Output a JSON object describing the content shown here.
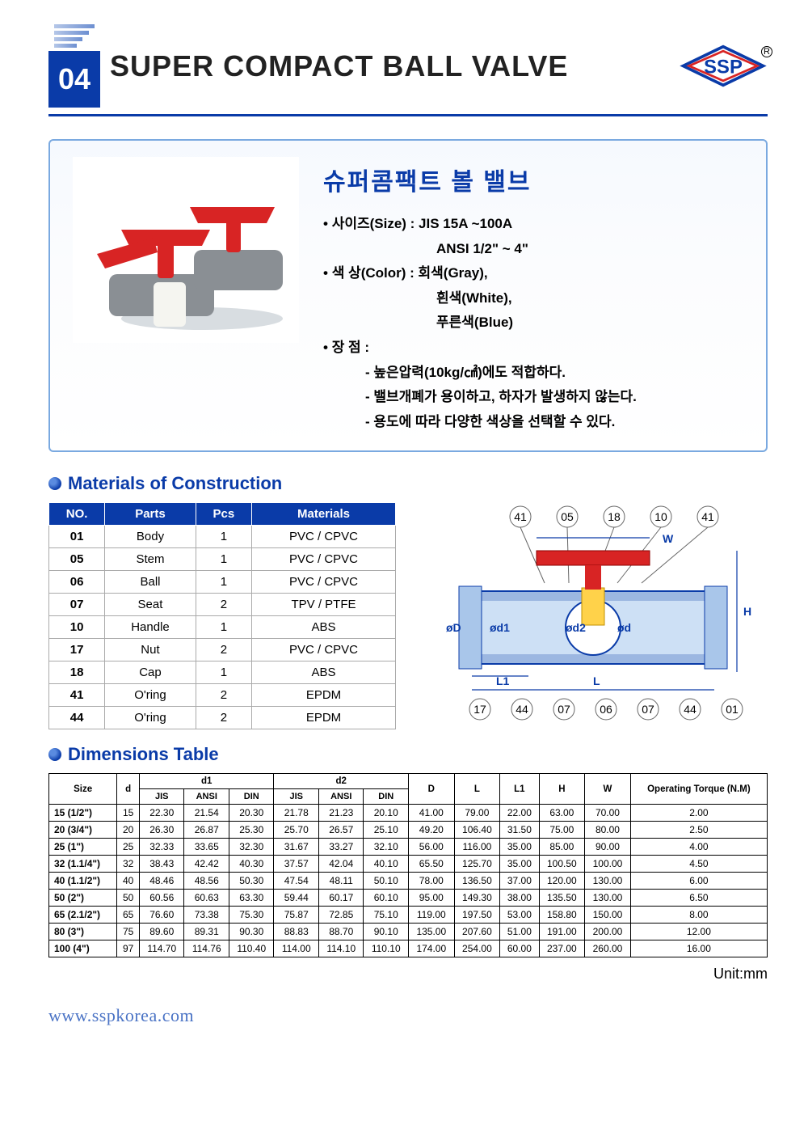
{
  "header": {
    "page_num": "04",
    "title": "SUPER COMPACT BALL VALVE",
    "logo_text": "SSP",
    "registered": "R"
  },
  "info": {
    "ko_title": "슈퍼콤팩트 볼 밸브",
    "size_label": "사이즈(Size) : JIS 15A ~100A",
    "size_line2": "ANSI 1/2\" ~ 4\"",
    "color_label": "색 상(Color) : 회색(Gray),",
    "color_line2": "흰색(White),",
    "color_line3": "푸른색(Blue)",
    "adv_label": "장 점 :",
    "adv1": "높은압력(10kg/㎠)에도 적합하다.",
    "adv2": "밸브개폐가 용이하고, 하자가 발생하지 않는다.",
    "adv3": "용도에 따라 다양한 색상을 선택할 수 있다."
  },
  "sections": {
    "materials": "Materials of Construction",
    "dimensions": "Dimensions Table"
  },
  "materials": {
    "columns": [
      "NO.",
      "Parts",
      "Pcs",
      "Materials"
    ],
    "rows": [
      [
        "01",
        "Body",
        "1",
        "PVC / CPVC"
      ],
      [
        "05",
        "Stem",
        "1",
        "PVC / CPVC"
      ],
      [
        "06",
        "Ball",
        "1",
        "PVC / CPVC"
      ],
      [
        "07",
        "Seat",
        "2",
        "TPV / PTFE"
      ],
      [
        "10",
        "Handle",
        "1",
        "ABS"
      ],
      [
        "17",
        "Nut",
        "2",
        "PVC / CPVC"
      ],
      [
        "18",
        "Cap",
        "1",
        "ABS"
      ],
      [
        "41",
        "O'ring",
        "2",
        "EPDM"
      ],
      [
        "44",
        "O'ring",
        "2",
        "EPDM"
      ]
    ]
  },
  "diagram_labels": [
    "41",
    "05",
    "18",
    "10",
    "41",
    "17",
    "44",
    "07",
    "06",
    "07",
    "44",
    "01"
  ],
  "diagram_dims": [
    "øD",
    "ød1",
    "ød2",
    "ød",
    "W",
    "H",
    "L1",
    "L"
  ],
  "dimensions": {
    "top_cols": [
      "Size",
      "d",
      "d1",
      "d2",
      "D",
      "L",
      "L1",
      "H",
      "W",
      "Operating Torque (N.M)"
    ],
    "sub_cols": [
      "JIS",
      "ANSI",
      "DIN",
      "JIS",
      "ANSI",
      "DIN"
    ],
    "rows": [
      [
        "15 (1/2\")",
        "15",
        "22.30",
        "21.54",
        "20.30",
        "21.78",
        "21.23",
        "20.10",
        "41.00",
        "79.00",
        "22.00",
        "63.00",
        "70.00",
        "2.00"
      ],
      [
        "20 (3/4\")",
        "20",
        "26.30",
        "26.87",
        "25.30",
        "25.70",
        "26.57",
        "25.10",
        "49.20",
        "106.40",
        "31.50",
        "75.00",
        "80.00",
        "2.50"
      ],
      [
        "25 (1\")",
        "25",
        "32.33",
        "33.65",
        "32.30",
        "31.67",
        "33.27",
        "32.10",
        "56.00",
        "116.00",
        "35.00",
        "85.00",
        "90.00",
        "4.00"
      ],
      [
        "32 (1.1/4\")",
        "32",
        "38.43",
        "42.42",
        "40.30",
        "37.57",
        "42.04",
        "40.10",
        "65.50",
        "125.70",
        "35.00",
        "100.50",
        "100.00",
        "4.50"
      ],
      [
        "40 (1.1/2\")",
        "40",
        "48.46",
        "48.56",
        "50.30",
        "47.54",
        "48.11",
        "50.10",
        "78.00",
        "136.50",
        "37.00",
        "120.00",
        "130.00",
        "6.00"
      ],
      [
        "50 (2\")",
        "50",
        "60.56",
        "60.63",
        "63.30",
        "59.44",
        "60.17",
        "60.10",
        "95.00",
        "149.30",
        "38.00",
        "135.50",
        "130.00",
        "6.50"
      ],
      [
        "65 (2.1/2\")",
        "65",
        "76.60",
        "73.38",
        "75.30",
        "75.87",
        "72.85",
        "75.10",
        "119.00",
        "197.50",
        "53.00",
        "158.80",
        "150.00",
        "8.00"
      ],
      [
        "80 (3\")",
        "75",
        "89.60",
        "89.31",
        "90.30",
        "88.83",
        "88.70",
        "90.10",
        "135.00",
        "207.60",
        "51.00",
        "191.00",
        "200.00",
        "12.00"
      ],
      [
        "100 (4\")",
        "97",
        "114.70",
        "114.76",
        "110.40",
        "114.00",
        "114.10",
        "110.10",
        "174.00",
        "254.00",
        "60.00",
        "237.00",
        "260.00",
        "16.00"
      ]
    ]
  },
  "unit_label": "Unit:mm",
  "footer_url": "www.sspkorea.com",
  "colors": {
    "brand": "#0a3ba8",
    "border": "#7aa9e0",
    "handle": "#d82424",
    "body_gray": "#8a8f94"
  }
}
